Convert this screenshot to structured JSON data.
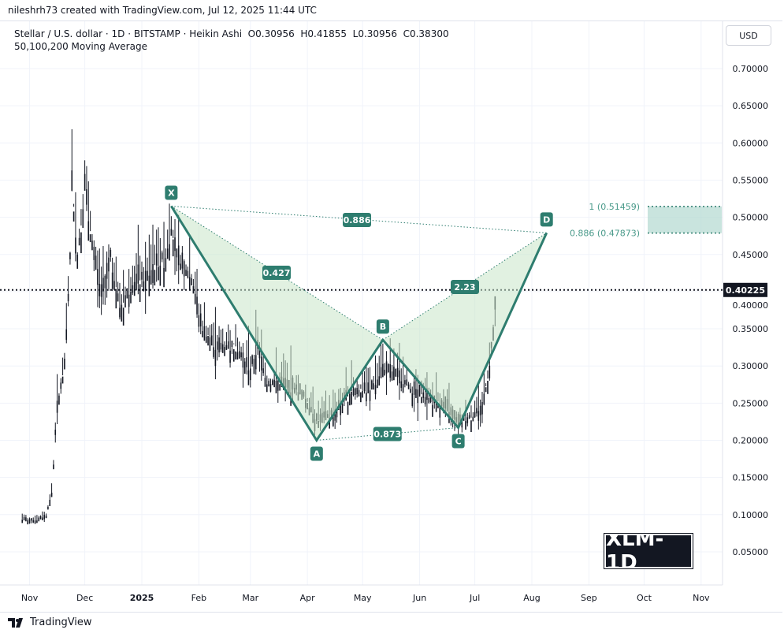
{
  "header": {
    "credit": "nileshrh73 created with TradingView.com, Jul 12, 2025 11:44 UTC",
    "legend": "Stellar / U.S. dollar · 1D · BITSTAMP · Heikin Ashi  O0.30956  H0.41855  L0.30956  C0.38300",
    "indicator": "50,100,200 Moving Average",
    "currency_button": "USD"
  },
  "watermark": "XLM-1D",
  "footer": {
    "brand": "TradingView"
  },
  "colors": {
    "pattern": "#2e7d6f",
    "fill": "#c8e6c9",
    "zone": "#b2d8d0",
    "candles": "#131722"
  },
  "chart_data": {
    "type": "candlestick",
    "ylim": [
      0,
      0.72
    ],
    "y_ticks": [
      "0.70000",
      "0.65000",
      "0.60000",
      "0.55000",
      "0.50000",
      "0.45000",
      "0.40000",
      "0.35000",
      "0.30000",
      "0.25000",
      "0.20000",
      "0.15000",
      "0.10000",
      "0.05000"
    ],
    "x_ticks": [
      {
        "label": "Nov",
        "date": "2024-11-01"
      },
      {
        "label": "Dec",
        "date": "2024-12-01"
      },
      {
        "label": "2025",
        "date": "2025-01-01"
      },
      {
        "label": "Feb",
        "date": "2025-02-01"
      },
      {
        "label": "Mar",
        "date": "2025-03-01"
      },
      {
        "label": "Apr",
        "date": "2025-04-01"
      },
      {
        "label": "May",
        "date": "2025-05-01"
      },
      {
        "label": "Jun",
        "date": "2025-06-01"
      },
      {
        "label": "Jul",
        "date": "2025-07-01"
      },
      {
        "label": "Aug",
        "date": "2025-08-01"
      },
      {
        "label": "Sep",
        "date": "2025-09-01"
      },
      {
        "label": "Oct",
        "date": "2025-10-01"
      },
      {
        "label": "Nov",
        "date": "2025-11-01"
      }
    ],
    "last_price": "0.40225",
    "price_path": [
      [
        "2024-10-28",
        0.095
      ],
      [
        "2024-11-05",
        0.093
      ],
      [
        "2024-11-10",
        0.1
      ],
      [
        "2024-11-13",
        0.13
      ],
      [
        "2024-11-16",
        0.25
      ],
      [
        "2024-11-20",
        0.3
      ],
      [
        "2024-11-23",
        0.45
      ],
      [
        "2024-11-24",
        0.55
      ],
      [
        "2024-11-27",
        0.45
      ],
      [
        "2024-12-01",
        0.55
      ],
      [
        "2024-12-03",
        0.5
      ],
      [
        "2024-12-06",
        0.45
      ],
      [
        "2024-12-10",
        0.4
      ],
      [
        "2024-12-15",
        0.45
      ],
      [
        "2024-12-20",
        0.38
      ],
      [
        "2024-12-28",
        0.42
      ],
      [
        "2025-01-03",
        0.42
      ],
      [
        "2025-01-08",
        0.44
      ],
      [
        "2025-01-14",
        0.45
      ],
      [
        "2025-01-17",
        0.49
      ],
      [
        "2025-01-20",
        0.45
      ],
      [
        "2025-01-28",
        0.42
      ],
      [
        "2025-02-03",
        0.35
      ],
      [
        "2025-02-10",
        0.33
      ],
      [
        "2025-02-20",
        0.33
      ],
      [
        "2025-03-01",
        0.3
      ],
      [
        "2025-03-05",
        0.33
      ],
      [
        "2025-03-10",
        0.28
      ],
      [
        "2025-03-20",
        0.28
      ],
      [
        "2025-03-28",
        0.27
      ],
      [
        "2025-04-07",
        0.23
      ],
      [
        "2025-04-15",
        0.24
      ],
      [
        "2025-04-25",
        0.27
      ],
      [
        "2025-05-05",
        0.27
      ],
      [
        "2025-05-12",
        0.3
      ],
      [
        "2025-05-20",
        0.29
      ],
      [
        "2025-05-28",
        0.27
      ],
      [
        "2025-06-05",
        0.26
      ],
      [
        "2025-06-15",
        0.25
      ],
      [
        "2025-06-22",
        0.23
      ],
      [
        "2025-06-30",
        0.235
      ],
      [
        "2025-07-05",
        0.25
      ],
      [
        "2025-07-09",
        0.3
      ],
      [
        "2025-07-12",
        0.383
      ]
    ],
    "pattern": {
      "points": [
        {
          "label": "X",
          "date": "2025-01-17",
          "price": 0.515
        },
        {
          "label": "A",
          "date": "2025-04-06",
          "price": 0.2
        },
        {
          "label": "B",
          "date": "2025-05-12",
          "price": 0.335
        },
        {
          "label": "C",
          "date": "2025-06-22",
          "price": 0.217
        },
        {
          "label": "D",
          "date": "2025-08-09",
          "price": 0.479
        }
      ],
      "ratios": {
        "XB": "0.427",
        "AC": "0.873",
        "BD": "2.23",
        "XD": "0.886"
      }
    },
    "zone": {
      "top_label": "1 (0.51459)",
      "top": 0.51459,
      "bottom_label": "0.886 (0.47873)",
      "bottom": 0.47873
    }
  }
}
